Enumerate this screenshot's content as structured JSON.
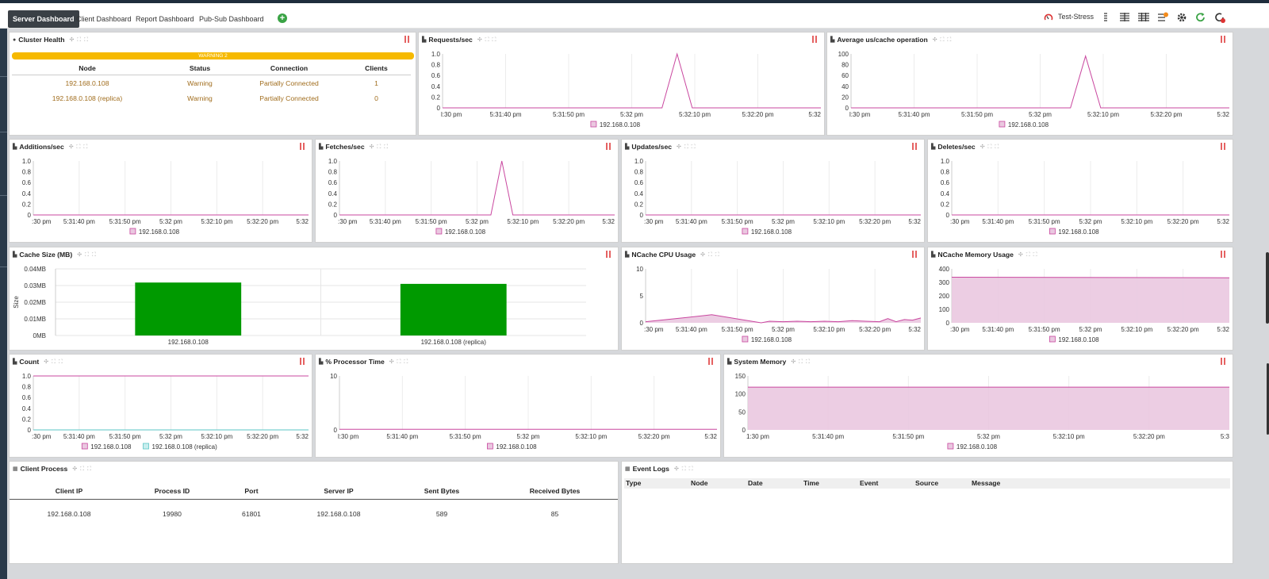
{
  "nav": {
    "tabs": [
      "Server Dashboard",
      "Client Dashboard",
      "Report Dashboard",
      "Pub-Sub Dashboard"
    ],
    "cache_name": "Test-Stress"
  },
  "colors": {
    "series": "#c9479f",
    "series_fill": "#eac8e0",
    "replica": "#5bc5c5",
    "bar": "#009a00",
    "warning": "#f6b900"
  },
  "time_ticks": [
    ":30 pm",
    "5:31:40 pm",
    "5:31:50 pm",
    "5:32 pm",
    "5:32:10 pm",
    "5:32:20 pm",
    "5:32"
  ],
  "cluster_health": {
    "title": "Cluster Health",
    "warning": "WARNING 2",
    "headers": [
      "Node",
      "Status",
      "Connection",
      "Clients"
    ],
    "rows": [
      [
        "192.168.0.108",
        "Warning",
        "Partially Connected",
        "1"
      ],
      [
        "192.168.0.108 (replica)",
        "Warning",
        "Partially Connected",
        "0"
      ]
    ]
  },
  "charts": {
    "requests": {
      "title": "Requests/sec",
      "type": "line",
      "yticks": [
        "1.0",
        "0.8",
        "0.6",
        "0.4",
        "0.2",
        "0"
      ],
      "ylim": [
        0,
        1
      ],
      "xticks": [
        "l:30 pm",
        "5:31:40 pm",
        "5:31:50 pm",
        "5:32 pm",
        "5:32:10 pm",
        "5:32:20 pm",
        "5:32"
      ],
      "series": [
        {
          "name": "192.168.0.108",
          "points": [
            [
              0,
              0
            ],
            [
              0.58,
              0
            ],
            [
              0.62,
              1
            ],
            [
              0.66,
              0
            ],
            [
              1,
              0
            ]
          ]
        }
      ]
    },
    "avg_op": {
      "title": "Average us/cache operation",
      "type": "line",
      "yticks": [
        "100",
        "80",
        "60",
        "40",
        "20",
        "0"
      ],
      "ylim": [
        0,
        100
      ],
      "xticks": [
        "l:30 pm",
        "5:31:40 pm",
        "5:31:50 pm",
        "5:32 pm",
        "5:32:10 pm",
        "5:32:20 pm",
        "5:32"
      ],
      "series": [
        {
          "name": "192.168.0.108",
          "points": [
            [
              0,
              0
            ],
            [
              0.58,
              0
            ],
            [
              0.62,
              96
            ],
            [
              0.66,
              0
            ],
            [
              1,
              0
            ]
          ]
        }
      ]
    },
    "additions": {
      "title": "Additions/sec",
      "type": "line",
      "yticks": [
        "1.0",
        "0.8",
        "0.6",
        "0.4",
        "0.2",
        "0"
      ],
      "ylim": [
        0,
        1
      ],
      "xticks": [
        ":30 pm",
        "5:31:40 pm",
        "5:31:50 pm",
        "5:32 pm",
        "5:32:10 pm",
        "5:32:20 pm",
        "5:32"
      ],
      "series": [
        {
          "name": "192.168.0.108",
          "points": [
            [
              0,
              0
            ],
            [
              1,
              0
            ]
          ]
        }
      ]
    },
    "fetches": {
      "title": "Fetches/sec",
      "type": "line",
      "yticks": [
        "1.0",
        "0.8",
        "0.6",
        "0.4",
        "0.2",
        "0"
      ],
      "ylim": [
        0,
        1
      ],
      "xticks": [
        ":30 pm",
        "5:31:40 pm",
        "5:31:50 pm",
        "5:32 pm",
        "5:32:10 pm",
        "5:32:20 pm",
        "5:32"
      ],
      "series": [
        {
          "name": "192.168.0.108",
          "points": [
            [
              0,
              0
            ],
            [
              0.55,
              0
            ],
            [
              0.59,
              1
            ],
            [
              0.63,
              0
            ],
            [
              1,
              0
            ]
          ]
        }
      ]
    },
    "updates": {
      "title": "Updates/sec",
      "type": "line",
      "yticks": [
        "1.0",
        "0.8",
        "0.6",
        "0.4",
        "0.2",
        "0"
      ],
      "ylim": [
        0,
        1
      ],
      "xticks": [
        ":30 pm",
        "5:31:40 pm",
        "5:31:50 pm",
        "5:32 pm",
        "5:32:10 pm",
        "5:32:20 pm",
        "5:32"
      ],
      "series": [
        {
          "name": "192.168.0.108",
          "points": [
            [
              0,
              0
            ],
            [
              1,
              0
            ]
          ]
        }
      ]
    },
    "deletes": {
      "title": "Deletes/sec",
      "type": "line",
      "yticks": [
        "1.0",
        "0.8",
        "0.6",
        "0.4",
        "0.2",
        "0"
      ],
      "ylim": [
        0,
        1
      ],
      "xticks": [
        ":30 pm",
        "5:31:40 pm",
        "5:31:50 pm",
        "5:32 pm",
        "5:32:10 pm",
        "5:32:20 pm",
        "5:32"
      ],
      "series": [
        {
          "name": "192.168.0.108",
          "points": [
            [
              0,
              0
            ],
            [
              1,
              0
            ]
          ]
        }
      ]
    },
    "cache_size": {
      "title": "Cache Size (MB)",
      "type": "bar",
      "yticks": [
        "0.04MB",
        "0.03MB",
        "0.02MB",
        "0.01MB",
        "0MB"
      ],
      "ylim": [
        0,
        0.04
      ],
      "ylabel": "Size",
      "categories": [
        "192.168.0.108",
        "192.168.0.108 (replica)"
      ],
      "values": [
        0.0318,
        0.031
      ]
    },
    "cpu": {
      "title": "NCache CPU Usage",
      "type": "area",
      "yticks": [
        "10",
        "5",
        "0"
      ],
      "ylim": [
        0,
        10
      ],
      "xticks": [
        ":30 pm",
        "5:31:40 pm",
        "5:31:50 pm",
        "5:32 pm",
        "5:32:10 pm",
        "5:32:20 pm",
        "5:32"
      ],
      "series": [
        {
          "name": "192.168.0.108",
          "points": [
            [
              0,
              0.2
            ],
            [
              0.15,
              1
            ],
            [
              0.24,
              1.5
            ],
            [
              0.42,
              0
            ],
            [
              0.45,
              0.3
            ],
            [
              0.5,
              0.2
            ],
            [
              0.55,
              0.3
            ],
            [
              0.6,
              0.2
            ],
            [
              0.65,
              0.3
            ],
            [
              0.7,
              0.2
            ],
            [
              0.75,
              0.4
            ],
            [
              0.8,
              0.3
            ],
            [
              0.85,
              0.2
            ],
            [
              0.88,
              0.8
            ],
            [
              0.91,
              0.2
            ],
            [
              0.94,
              0.6
            ],
            [
              0.97,
              0.5
            ],
            [
              1,
              0.9
            ]
          ]
        }
      ]
    },
    "memory": {
      "title": "NCache Memory Usage",
      "type": "area",
      "yticks": [
        "400",
        "300",
        "200",
        "100",
        "0"
      ],
      "ylim": [
        0,
        400
      ],
      "xticks": [
        ":30 pm",
        "5:31:40 pm",
        "5:31:50 pm",
        "5:32 pm",
        "5:32:10 pm",
        "5:32:20 pm",
        "5:32"
      ],
      "series": [
        {
          "name": "192.168.0.108",
          "points": [
            [
              0,
              338
            ],
            [
              1,
              334
            ]
          ]
        }
      ]
    },
    "count": {
      "title": "Count",
      "type": "line",
      "yticks": [
        "1.0",
        "0.8",
        "0.6",
        "0.4",
        "0.2",
        "0"
      ],
      "ylim": [
        0,
        1
      ],
      "xticks": [
        ":30 pm",
        "5:31:40 pm",
        "5:31:50 pm",
        "5:32 pm",
        "5:32:10 pm",
        "5:32:20 pm",
        "5:32"
      ],
      "series": [
        {
          "name": "192.168.0.108",
          "points": [
            [
              0,
              1
            ],
            [
              1,
              1
            ]
          ]
        },
        {
          "name": "192.168.0.108 (replica)",
          "points": [
            [
              0,
              0
            ],
            [
              1,
              0
            ]
          ]
        }
      ]
    },
    "processor": {
      "title": "% Processor Time",
      "type": "line",
      "yticks": [
        "10",
        "0"
      ],
      "ylim": [
        0,
        10
      ],
      "xticks": [
        "l:30 pm",
        "5:31:40 pm",
        "5:31:50 pm",
        "5:32 pm",
        "5:32:10 pm",
        "5:32:20 pm",
        "5:32"
      ],
      "series": [
        {
          "name": "192.168.0.108",
          "points": [
            [
              0,
              0.1
            ],
            [
              1,
              0.1
            ]
          ]
        }
      ]
    },
    "sysmem": {
      "title": "System Memory",
      "type": "area",
      "yticks": [
        "150",
        "100",
        "50",
        "0"
      ],
      "ylim": [
        0,
        150
      ],
      "xticks": [
        "1:30 pm",
        "5:31:40 pm",
        "5:31:50 pm",
        "5:32 pm",
        "5:32:10 pm",
        "5:32:20 pm",
        "5:3"
      ],
      "series": [
        {
          "name": "192.168.0.108",
          "points": [
            [
              0,
              119
            ],
            [
              1,
              119
            ]
          ]
        }
      ]
    }
  },
  "client_process": {
    "title": "Client Process",
    "headers": [
      "Client IP",
      "Process ID",
      "Port",
      "Server IP",
      "Sent Bytes",
      "Received Bytes"
    ],
    "rows": [
      [
        "192.168.0.108",
        "19980",
        "61801",
        "192.168.0.108",
        "589",
        "85"
      ]
    ]
  },
  "event_logs": {
    "title": "Event Logs",
    "headers": [
      "Type",
      "Node",
      "Date",
      "Time",
      "Event",
      "Source",
      "Message"
    ]
  }
}
